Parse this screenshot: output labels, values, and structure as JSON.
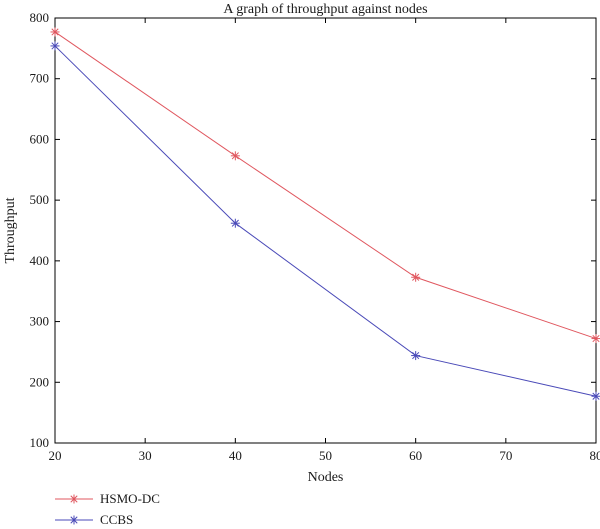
{
  "chart_data": {
    "type": "line",
    "title": "A graph of throughput against nodes",
    "xlabel": "Nodes",
    "ylabel": "Throughput",
    "xlim": [
      20,
      80
    ],
    "ylim": [
      100,
      800
    ],
    "x_ticks": [
      20,
      30,
      40,
      50,
      60,
      70,
      80
    ],
    "y_ticks": [
      100,
      200,
      300,
      400,
      500,
      600,
      700,
      800
    ],
    "x": [
      20,
      40,
      60,
      80
    ],
    "series": [
      {
        "name": "HSMO-DC",
        "values": [
          777,
          573,
          373,
          272
        ],
        "color": "#e0575f",
        "marker": "asterisk"
      },
      {
        "name": "CCBS",
        "values": [
          754,
          462,
          244,
          177
        ],
        "color": "#4a4ab8",
        "marker": "asterisk"
      }
    ],
    "grid": false,
    "legend_position": "bottom-left"
  }
}
